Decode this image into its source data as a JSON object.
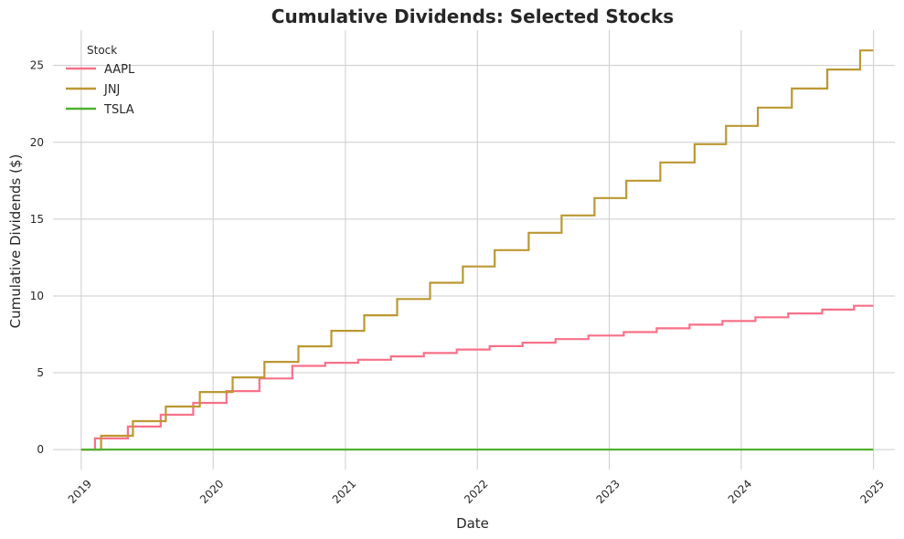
{
  "chart_data": {
    "type": "line",
    "title": "Cumulative Dividends: Selected Stocks",
    "xlabel": "Date",
    "ylabel": "Cumulative Dividends ($)",
    "x_ticks": [
      "2019",
      "2020",
      "2021",
      "2022",
      "2023",
      "2024",
      "2025"
    ],
    "y_ticks": [
      0,
      5,
      10,
      15,
      20,
      25
    ],
    "xlim": [
      "2018-10-15",
      "2025-03-01"
    ],
    "ylim": [
      -1.3,
      27.3
    ],
    "grid": true,
    "legend": {
      "title": "Stock",
      "placement": "top-left"
    },
    "step": true,
    "series": [
      {
        "name": "AAPL",
        "color": "#f77189",
        "points": [
          [
            "2019-01-01",
            0
          ],
          [
            "2019-02-08",
            0.73
          ],
          [
            "2019-05-10",
            1.5
          ],
          [
            "2019-08-09",
            2.27
          ],
          [
            "2019-11-07",
            3.04
          ],
          [
            "2020-02-07",
            3.81
          ],
          [
            "2020-05-08",
            4.63
          ],
          [
            "2020-08-07",
            5.45
          ],
          [
            "2020-11-06",
            5.65
          ],
          [
            "2021-02-05",
            5.85
          ],
          [
            "2021-05-07",
            6.07
          ],
          [
            "2021-08-06",
            6.29
          ],
          [
            "2021-11-05",
            6.51
          ],
          [
            "2022-02-04",
            6.73
          ],
          [
            "2022-05-06",
            6.96
          ],
          [
            "2022-08-05",
            7.19
          ],
          [
            "2022-11-04",
            7.42
          ],
          [
            "2023-02-10",
            7.65
          ],
          [
            "2023-05-12",
            7.89
          ],
          [
            "2023-08-11",
            8.13
          ],
          [
            "2023-11-10",
            8.37
          ],
          [
            "2024-02-09",
            8.61
          ],
          [
            "2024-05-10",
            8.86
          ],
          [
            "2024-08-12",
            9.11
          ],
          [
            "2024-11-08",
            9.36
          ],
          [
            "2024-12-31",
            9.36
          ]
        ]
      },
      {
        "name": "JNJ",
        "color": "#bb9832",
        "points": [
          [
            "2019-01-01",
            0
          ],
          [
            "2019-02-25",
            0.9
          ],
          [
            "2019-05-24",
            1.85
          ],
          [
            "2019-08-23",
            2.8
          ],
          [
            "2019-11-25",
            3.75
          ],
          [
            "2020-02-24",
            4.7
          ],
          [
            "2020-05-22",
            5.71
          ],
          [
            "2020-08-24",
            6.72
          ],
          [
            "2020-11-23",
            7.73
          ],
          [
            "2021-02-22",
            8.74
          ],
          [
            "2021-05-24",
            9.8
          ],
          [
            "2021-08-23",
            10.86
          ],
          [
            "2021-11-22",
            11.92
          ],
          [
            "2022-02-18",
            12.98
          ],
          [
            "2022-05-23",
            14.11
          ],
          [
            "2022-08-22",
            15.24
          ],
          [
            "2022-11-21",
            16.37
          ],
          [
            "2023-02-17",
            17.5
          ],
          [
            "2023-05-22",
            18.69
          ],
          [
            "2023-08-25",
            19.88
          ],
          [
            "2023-11-20",
            21.07
          ],
          [
            "2024-02-16",
            22.26
          ],
          [
            "2024-05-20",
            23.5
          ],
          [
            "2024-08-26",
            24.74
          ],
          [
            "2024-11-25",
            25.98
          ],
          [
            "2024-12-31",
            25.98
          ]
        ]
      },
      {
        "name": "TSLA",
        "color": "#50b131",
        "points": [
          [
            "2019-01-01",
            0
          ],
          [
            "2024-12-31",
            0
          ]
        ]
      }
    ]
  }
}
